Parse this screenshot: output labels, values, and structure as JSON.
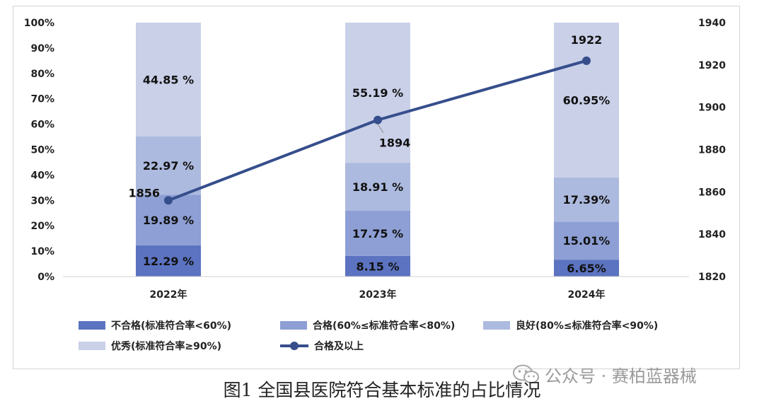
{
  "caption": "图1  全国县医院符合基本标准的占比情况",
  "watermark": "公众号 · 赛柏蓝器械",
  "watermark_icon": "wechat-icon",
  "chart_data": {
    "type": "bar",
    "stacked": true,
    "categories": [
      "2022年",
      "2023年",
      "2024年"
    ],
    "series": [
      {
        "name": "不合格(标准符合率<60%)",
        "color": "#5b73c0",
        "values": [
          12.29,
          8.15,
          6.65
        ],
        "labels": [
          "12.29 %",
          "8.15 %",
          "6.65%"
        ]
      },
      {
        "name": "合格(60%≤标准符合率<80%)",
        "color": "#8d9fd4",
        "values": [
          19.89,
          17.75,
          15.01
        ],
        "labels": [
          "19.89 %",
          "17.75 %",
          "15.01%"
        ]
      },
      {
        "name": "良好(80%≤标准符合率<90%)",
        "color": "#adbadf",
        "values": [
          22.97,
          18.91,
          17.39
        ],
        "labels": [
          "22.97 %",
          "18.91 %",
          "17.39%"
        ]
      },
      {
        "name": "优秀(标准符合率≥90%)",
        "color": "#c9d0e8",
        "values": [
          44.85,
          55.19,
          60.95
        ],
        "labels": [
          "44.85 %",
          "55.19 %",
          "60.95%"
        ]
      }
    ],
    "line": {
      "name": "合格及以上",
      "color": "#364e8c",
      "values": [
        1856,
        1894,
        1922
      ],
      "labels": [
        "1856",
        "1894",
        "1922"
      ],
      "axis": "right"
    },
    "y_left": {
      "ylim": [
        0,
        100
      ],
      "ticks": [
        "0%",
        "10%",
        "20%",
        "30%",
        "40%",
        "50%",
        "60%",
        "70%",
        "80%",
        "90%",
        "100%"
      ]
    },
    "y_right": {
      "ylim": [
        1820,
        1940
      ],
      "ticks": [
        "1820",
        "1840",
        "1860",
        "1880",
        "1900",
        "1920",
        "1940"
      ]
    },
    "legend_position": "bottom",
    "grid": false
  }
}
